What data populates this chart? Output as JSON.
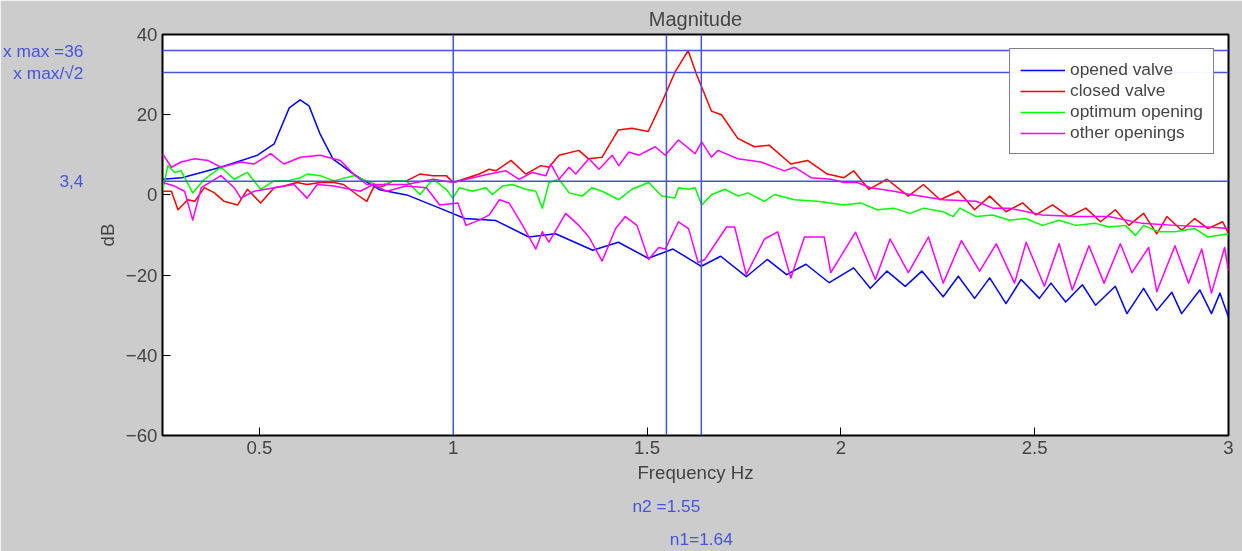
{
  "chart_data": {
    "type": "line",
    "title": "Magnitude",
    "xlabel": "Frequency Hz",
    "ylabel": "dB",
    "xlim": [
      0.25,
      3
    ],
    "ylim": [
      -60,
      40
    ],
    "xticks": [
      0.5,
      1,
      1.5,
      2,
      2.5,
      3
    ],
    "yticks": [
      -60,
      -40,
      -20,
      0,
      20,
      40
    ],
    "grid": false,
    "legend": "top right",
    "series": [
      {
        "name": "opened valve",
        "color": "#0000ff",
        "x": [
          0.25,
          0.3,
          0.4,
          0.495,
          0.538,
          0.577,
          0.605,
          0.628,
          0.656,
          0.69,
          0.744,
          0.81,
          0.88,
          0.965,
          1.03,
          1.11,
          1.195,
          1.264,
          1.36,
          1.426,
          1.503,
          1.567,
          1.64,
          1.69,
          1.756,
          1.81,
          1.86,
          1.91,
          1.97,
          2.033,
          2.076,
          2.119,
          2.166,
          2.209,
          2.264,
          2.303,
          2.345,
          2.384,
          2.426,
          2.465,
          2.512,
          2.542,
          2.58,
          2.623,
          2.657,
          2.708,
          2.738,
          2.781,
          2.815,
          2.854,
          2.879,
          2.926,
          2.956,
          2.978,
          3.0
        ],
        "values": [
          3.9,
          4.3,
          6.9,
          9.9,
          12.7,
          21.7,
          23.7,
          22.2,
          15.3,
          8.9,
          5.1,
          1.3,
          0,
          -3.3,
          -5.9,
          -6.4,
          -10.5,
          -9.7,
          -13.8,
          -11.8,
          -15.8,
          -13.5,
          -17.8,
          -15.3,
          -20.4,
          -16.1,
          -19.9,
          -17.3,
          -21.9,
          -18.2,
          -23.3,
          -19.0,
          -22.8,
          -19.0,
          -25.4,
          -20.3,
          -25.8,
          -20.7,
          -27.1,
          -21.1,
          -25.8,
          -22.0,
          -26.7,
          -22.4,
          -27.5,
          -22.8,
          -29.6,
          -23.3,
          -28.8,
          -24.3,
          -29.6,
          -23.7,
          -29.6,
          -24.5,
          -30.5
        ]
      },
      {
        "name": "closed valve",
        "color": "#ff0000",
        "x": [
          0.25,
          0.273,
          0.29,
          0.315,
          0.333,
          0.358,
          0.384,
          0.409,
          0.444,
          0.469,
          0.503,
          0.538,
          0.563,
          0.597,
          0.623,
          0.657,
          0.692,
          0.717,
          0.751,
          0.777,
          0.794,
          0.82,
          0.845,
          0.879,
          0.914,
          0.948,
          0.982,
          1.0,
          1.067,
          1.093,
          1.11,
          1.149,
          1.187,
          1.226,
          1.247,
          1.273,
          1.324,
          1.349,
          1.384,
          1.426,
          1.461,
          1.503,
          1.538,
          1.572,
          1.606,
          1.627,
          1.666,
          1.692,
          1.734,
          1.777,
          1.815,
          1.871,
          1.914,
          1.965,
          2.008,
          2.033,
          2.072,
          2.119,
          2.174,
          2.213,
          2.256,
          2.303,
          2.345,
          2.384,
          2.426,
          2.469,
          2.503,
          2.546,
          2.589,
          2.632,
          2.67,
          2.708,
          2.743,
          2.781,
          2.815,
          2.841,
          2.879,
          2.913,
          2.947,
          2.985,
          3.0
        ],
        "values": [
          0.9,
          0.9,
          -3.7,
          -1.2,
          -1.6,
          1.8,
          0.5,
          -1.6,
          -2.5,
          1.4,
          -2.0,
          1.8,
          2.2,
          3.1,
          2.6,
          3.1,
          3.1,
          2.6,
          0.1,
          -1.6,
          1.8,
          2.2,
          3.5,
          3.5,
          5.2,
          4.8,
          4.8,
          3.1,
          5.2,
          6.4,
          6.0,
          8.6,
          5.2,
          7.3,
          6.9,
          9.9,
          11.1,
          9.0,
          9.4,
          16.2,
          16.6,
          15.8,
          23.0,
          30.6,
          36,
          30.2,
          20.9,
          20.0,
          14.1,
          12.0,
          12.4,
          7.7,
          8.6,
          5.2,
          4.3,
          6.0,
          1.4,
          3.9,
          -0.3,
          2.6,
          -1.2,
          0.9,
          -3.7,
          -0.3,
          -4.2,
          -2.0,
          -5.0,
          -2.5,
          -5.4,
          -3.3,
          -6.7,
          -3.7,
          -7.6,
          -4.6,
          -9.7,
          -5.4,
          -8.8,
          -5.9,
          -8.4,
          -6.7,
          -9.7
        ]
      },
      {
        "name": "optimum opening",
        "color": "#00ff00",
        "x": [
          0.25,
          0.264,
          0.281,
          0.298,
          0.328,
          0.358,
          0.401,
          0.435,
          0.469,
          0.503,
          0.538,
          0.572,
          0.606,
          0.623,
          0.657,
          0.692,
          0.743,
          0.777,
          0.811,
          0.845,
          0.879,
          0.914,
          0.948,
          0.982,
          0.999,
          1.016,
          1.05,
          1.084,
          1.101,
          1.127,
          1.153,
          1.187,
          1.213,
          1.23,
          1.247,
          1.273,
          1.299,
          1.333,
          1.358,
          1.384,
          1.427,
          1.461,
          1.504,
          1.538,
          1.572,
          1.581,
          1.607,
          1.624,
          1.641,
          1.667,
          1.701,
          1.735,
          1.76,
          1.803,
          1.829,
          1.88,
          1.94,
          2.008,
          2.051,
          2.094,
          2.136,
          2.179,
          2.213,
          2.264,
          2.29,
          2.307,
          2.349,
          2.392,
          2.435,
          2.477,
          2.52,
          2.563,
          2.606,
          2.657,
          2.691,
          2.734,
          2.76,
          2.781,
          2.819,
          2.862,
          2.913,
          2.947,
          3.0
        ],
        "values": [
          0.9,
          7.3,
          5.6,
          6.0,
          0.5,
          3.9,
          6.9,
          3.9,
          5.6,
          1.4,
          3.5,
          3.5,
          4.3,
          5.2,
          4.8,
          3.5,
          4.8,
          3.5,
          2.2,
          3.5,
          3.5,
          0.1,
          3.9,
          1.4,
          -0.8,
          1.8,
          0.9,
          1.8,
          0.1,
          2.2,
          2.6,
          1.4,
          0.9,
          -3.3,
          3.1,
          3.9,
          0.5,
          -0.3,
          1.8,
          0.9,
          -1.2,
          1.4,
          3.1,
          -0.3,
          -0.8,
          1.8,
          1.4,
          1.8,
          -2.5,
          0.1,
          1.4,
          -0.3,
          0.5,
          -1.6,
          0.1,
          -1.2,
          -1.6,
          -2.5,
          -2.0,
          -3.7,
          -3.3,
          -4.6,
          -3.3,
          -4.2,
          -5.4,
          -3.3,
          -5.4,
          -5.0,
          -6.3,
          -5.9,
          -7.6,
          -6.3,
          -7.6,
          -7.1,
          -8.0,
          -7.6,
          -10.1,
          -7.6,
          -9.2,
          -9.2,
          -8.4,
          -10.5,
          -9.7
        ]
      },
      {
        "name": "other openings",
        "color": "#ff00ff",
        "x": [
          0.25,
          0.273,
          0.298,
          0.333,
          0.367,
          0.401,
          0.452,
          0.486,
          0.529,
          0.563,
          0.606,
          0.657,
          0.709,
          0.743,
          0.777,
          0.811,
          0.879,
          0.948,
          1.0,
          1.05,
          1.093,
          1.136,
          1.17,
          1.204,
          1.239,
          1.252,
          1.273,
          1.299,
          1.316,
          1.35,
          1.376,
          1.41,
          1.427,
          1.453,
          1.479,
          1.521,
          1.547,
          1.581,
          1.624,
          1.641,
          1.666,
          1.683,
          1.734,
          1.794,
          1.854,
          1.88,
          1.923,
          1.974,
          2.008,
          2.042,
          2.077,
          2.137,
          2.179,
          2.264,
          2.349,
          2.392,
          2.435,
          2.52,
          2.606,
          2.691,
          2.777,
          2.862,
          2.948,
          3.0
        ],
        "values": [
          10.3,
          6.9,
          8.2,
          9.0,
          8.6,
          6.9,
          8.2,
          7.7,
          10.3,
          7.7,
          9.4,
          9.9,
          8.6,
          5.2,
          2.6,
          2.6,
          2.6,
          3.9,
          3.1,
          4.3,
          5.2,
          6.0,
          3.9,
          5.6,
          4.8,
          7.7,
          3.9,
          6.9,
          5.2,
          9.0,
          6.4,
          9.9,
          7.3,
          10.7,
          9.9,
          12.0,
          9.9,
          13.7,
          10.3,
          13.2,
          9.4,
          11.1,
          9.0,
          8.2,
          6.0,
          6.9,
          4.3,
          3.9,
          3.1,
          3.1,
          1.8,
          0.9,
          0.1,
          -1.2,
          -1.6,
          -3.3,
          -3.3,
          -5.0,
          -5.4,
          -5.4,
          -7.1,
          -7.6,
          -8.0,
          -8.4
        ]
      },
      {
        "color": "#ff00ff",
        "x": [
          0.25,
          0.281,
          0.307,
          0.328,
          0.35,
          0.401,
          0.435,
          0.452,
          0.486,
          0.538,
          0.589,
          0.623,
          0.649,
          0.692,
          0.76,
          0.794,
          0.828,
          0.879,
          0.931,
          0.965,
          1.012,
          1.033,
          1.067,
          1.093,
          1.119,
          1.144,
          1.179,
          1.213,
          1.23,
          1.247,
          1.29,
          1.324,
          1.35,
          1.384,
          1.419,
          1.444,
          1.474,
          1.504,
          1.53,
          1.547,
          1.581,
          1.607,
          1.632,
          1.649,
          1.705,
          1.726,
          1.756,
          1.803,
          1.837,
          1.871,
          1.906,
          1.957,
          1.974,
          2.038,
          2.089,
          2.127,
          2.174,
          2.226,
          2.264,
          2.311,
          2.358,
          2.401,
          2.448,
          2.478,
          2.525,
          2.563,
          2.597,
          2.64,
          2.679,
          2.721,
          2.751,
          2.794,
          2.815,
          2.862,
          2.897,
          2.931,
          2.956,
          2.99,
          3.0
        ],
        "values": [
          3.1,
          2.2,
          0.9,
          -6.3,
          1.8,
          4.8,
          1.8,
          -0.8,
          0.9,
          1.8,
          2.6,
          -0.8,
          2.6,
          2.2,
          0.9,
          2.6,
          0.9,
          2.2,
          1.8,
          -2.5,
          -2.0,
          -7.6,
          -6.3,
          -5.0,
          -1.2,
          -2.0,
          -7.6,
          -13.5,
          -9.2,
          -11.8,
          -4.6,
          -7.6,
          -10.5,
          -16.5,
          -8.4,
          -5.4,
          -7.6,
          -16.1,
          -13.1,
          -13.5,
          -6.7,
          -8.4,
          -16.9,
          -16.1,
          -8.0,
          -8.0,
          -19.9,
          -11.0,
          -9.2,
          -20.7,
          -10.5,
          -10.5,
          -19.4,
          -9.3,
          -21.1,
          -11.0,
          -19.4,
          -10.5,
          -22.0,
          -11.4,
          -19.0,
          -12.2,
          -22.0,
          -11.8,
          -22.8,
          -12.2,
          -23.7,
          -12.7,
          -22.0,
          -12.2,
          -19.4,
          -13.1,
          -24.1,
          -12.7,
          -22.0,
          -13.5,
          -24.5,
          -13.1,
          -19.0
        ]
      }
    ],
    "ref_lines": [
      {
        "axis": "y",
        "value": 36,
        "label": "x max =36",
        "color": "#4455dd"
      },
      {
        "axis": "y",
        "value": 30.5,
        "label": "x max/√2",
        "color": "#4455dd"
      },
      {
        "axis": "y",
        "value": 3.4,
        "label": "3,4",
        "color": "#4455dd"
      },
      {
        "axis": "x",
        "value": 1,
        "color": "#4455dd"
      },
      {
        "axis": "x",
        "value": 1.55,
        "label": "n2 =1.55",
        "color": "#4455dd"
      },
      {
        "axis": "x",
        "value": 1.64,
        "label": "n1=1.64",
        "color": "#4455dd"
      }
    ]
  }
}
